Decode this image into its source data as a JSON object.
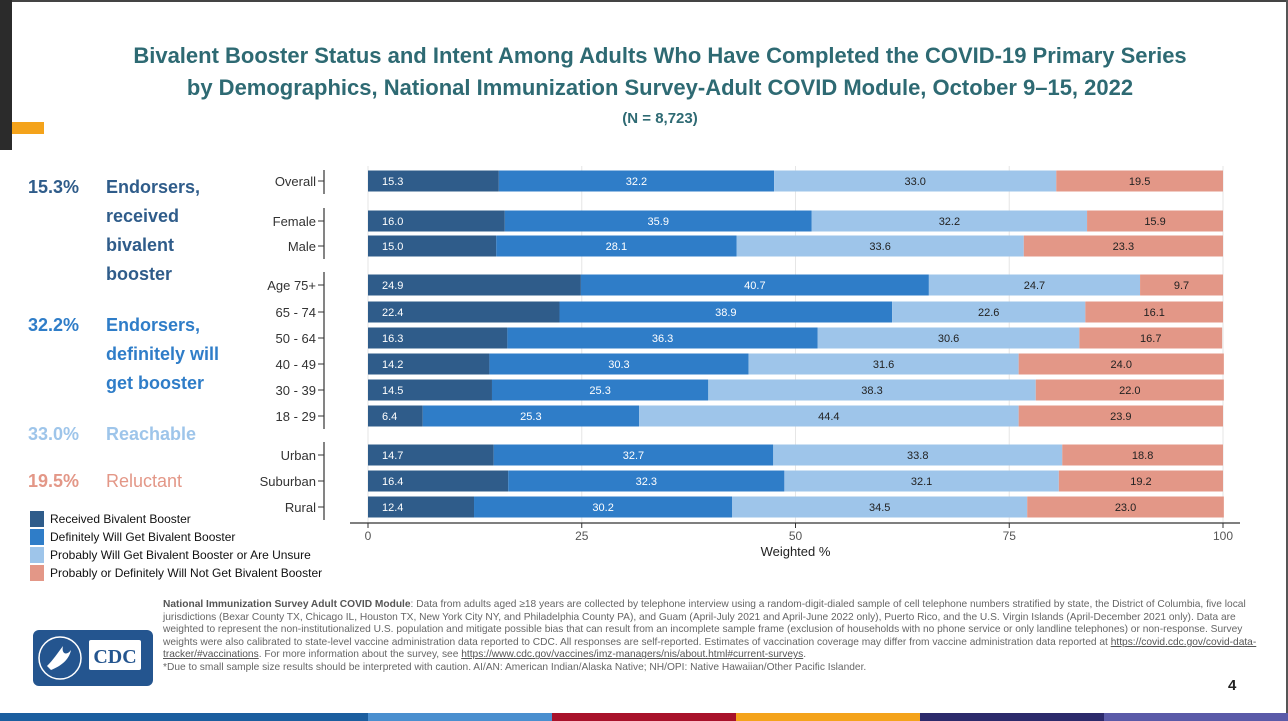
{
  "title_line1": "Bivalent Booster Status and Intent Among Adults Who Have Completed the COVID-19 Primary Series",
  "title_line2": "by Demographics, National Immunization Survey-Adult COVID Module, October 9–15, 2022",
  "subtitle": "(N = 8,723)",
  "side_labels": [
    {
      "pct": "15.3%",
      "label": "Endorsers, received bivalent booster",
      "color": "#2f5c8a"
    },
    {
      "pct": "32.2%",
      "label": "Endorsers, definitely will get booster",
      "color": "#2f7dc8"
    },
    {
      "pct": "33.0%",
      "label": "Reachable",
      "color": "#9ec5ea"
    },
    {
      "pct": "19.5%",
      "label": "Reluctant",
      "color": "#e39787"
    }
  ],
  "legend": [
    {
      "label": "Received Bivalent Booster",
      "color": "#2f5c8a"
    },
    {
      "label": "Definitely Will Get Bivalent Booster",
      "color": "#2f7dc8"
    },
    {
      "label": "Probably Will Get Bivalent Booster or Are Unsure",
      "color": "#9ec5ea"
    },
    {
      "label": "Probably or Definitely Will Not Get Bivalent Booster",
      "color": "#e39787"
    }
  ],
  "chart_data": {
    "type": "bar",
    "orientation": "horizontal",
    "stacked": true,
    "xlabel": "Weighted %",
    "xlim": [
      0,
      100
    ],
    "xticks": [
      0,
      25,
      50,
      75,
      100
    ],
    "groups": [
      [
        "Overall"
      ],
      [
        "Female",
        "Male"
      ],
      [
        "Age 75+",
        "65 - 74",
        "50 - 64",
        "40 - 49",
        "30 - 39",
        "18 - 29"
      ],
      [
        "Urban",
        "Suburban",
        "Rural"
      ]
    ],
    "categories": [
      "Overall",
      "Female",
      "Male",
      "Age 75+",
      "65 - 74",
      "50 - 64",
      "40 - 49",
      "30 - 39",
      "18 - 29",
      "Urban",
      "Suburban",
      "Rural"
    ],
    "series": [
      {
        "name": "Received Bivalent Booster",
        "color": "#2f5c8a",
        "values": [
          15.3,
          16.0,
          15.0,
          24.9,
          22.4,
          16.3,
          14.2,
          14.5,
          6.4,
          14.7,
          16.4,
          12.4
        ]
      },
      {
        "name": "Definitely Will Get Bivalent Booster",
        "color": "#2f7dc8",
        "values": [
          32.2,
          35.9,
          28.1,
          40.7,
          38.9,
          36.3,
          30.3,
          25.3,
          25.3,
          32.7,
          32.3,
          30.2
        ]
      },
      {
        "name": "Probably Will Get Bivalent Booster or Are Unsure",
        "color": "#9ec5ea",
        "values": [
          33.0,
          32.2,
          33.6,
          24.7,
          22.6,
          30.6,
          31.6,
          38.3,
          44.4,
          33.8,
          32.1,
          34.5
        ]
      },
      {
        "name": "Probably or Definitely Will Not Get Bivalent Booster",
        "color": "#e39787",
        "values": [
          19.5,
          15.9,
          23.3,
          9.7,
          16.1,
          16.7,
          24.0,
          22.0,
          23.9,
          18.8,
          19.2,
          23.0
        ]
      }
    ]
  },
  "footer": {
    "heading": "National Immunization Survey Adult COVID Module",
    "body": ": Data from adults aged ≥18 years are collected by telephone interview using a random-digit-dialed sample of cell telephone numbers stratified by state, the District of Columbia, five local jurisdictions (Bexar County TX, Chicago IL, Houston TX, New York City NY, and Philadelphia County PA), and Guam (April-July 2021 and April-June 2022 only), Puerto Rico, and the U.S. Virgin Islands (April-December 2021 only). Data are weighted to represent the non-institutionalized U.S. population and mitigate possible bias that can result from an incomplete sample frame (exclusion of households with no phone service or only landline telephones) or non-response. Survey weights were also calibrated to state-level vaccine administration data reported to CDC. All responses are self-reported. Estimates of vaccination coverage may differ from vaccine administration data reported at ",
    "link1": "https://covid.cdc.gov/covid-data-tracker/#vaccinations",
    "mid": ". For more information about the survey, see ",
    "link2": "https://www.cdc.gov/vaccines/imz-managers/nis/about.html#current-surveys",
    "end": ".",
    "note": "*Due to small sample size results should be interpreted with caution. AI/AN: American Indian/Alaska Native; NH/OPI: Native Hawaiian/Other Pacific Islander."
  },
  "logo_text": "CDC",
  "page_number": "4",
  "bottom_bar_colors": [
    "#1b5e9f",
    "#1b5e9f",
    "#4a8fcf",
    "#a8122a",
    "#f4a31b",
    "#2c2a6b",
    "#5a5aa8"
  ]
}
